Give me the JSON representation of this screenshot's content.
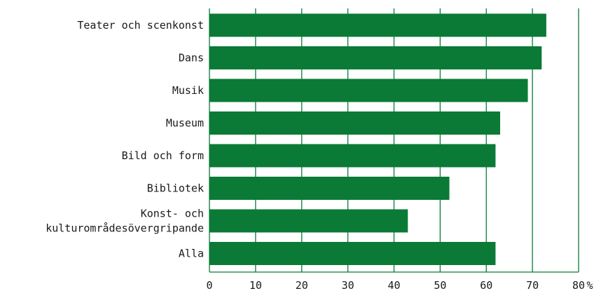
{
  "chart_data": {
    "type": "bar",
    "orientation": "horizontal",
    "categories": [
      "Teater och scenkonst",
      "Dans",
      "Musik",
      "Museum",
      "Bild och form",
      "Bibliotek",
      "Konst- och kulturområdesövergripande",
      "Alla"
    ],
    "category_lines": [
      [
        "Teater och scenkonst"
      ],
      [
        "Dans"
      ],
      [
        "Musik"
      ],
      [
        "Museum"
      ],
      [
        "Bild och form"
      ],
      [
        "Bibliotek"
      ],
      [
        "Konst- och",
        "kulturområdesövergripande"
      ],
      [
        "Alla"
      ]
    ],
    "values": [
      73,
      72,
      69,
      63,
      62,
      52,
      43,
      62
    ],
    "xlim": [
      0,
      80
    ],
    "xticks": [
      0,
      10,
      20,
      30,
      40,
      50,
      60,
      70,
      80
    ],
    "unit": "%",
    "grid": true,
    "colors": {
      "bar": "#0a7a36",
      "grid": "#0a7a36",
      "axis": "#0a7a36",
      "text": "#1a1a1a"
    }
  }
}
